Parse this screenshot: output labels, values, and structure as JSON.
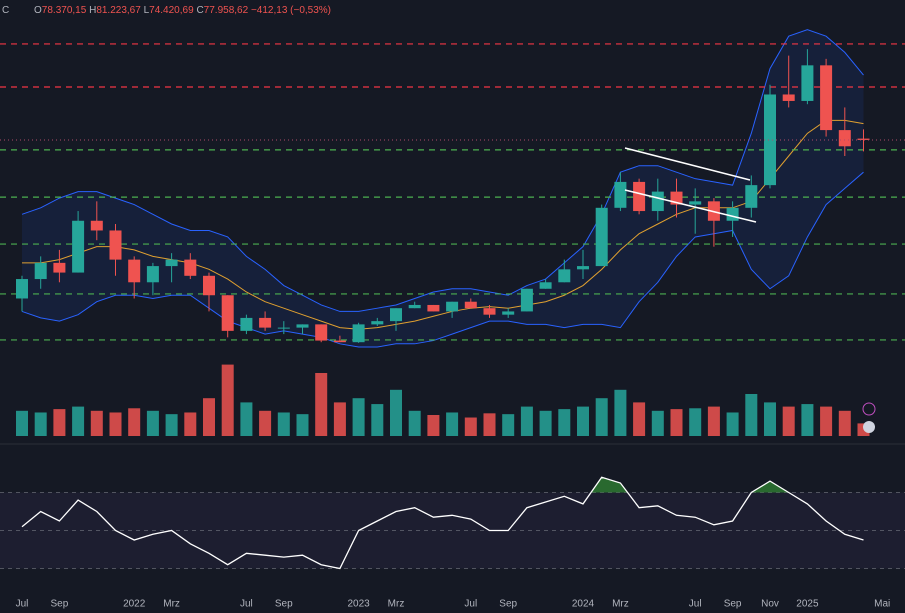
{
  "chart_data": {
    "type": "candlestick",
    "header": {
      "symbol": "C",
      "open_label": "O",
      "open": "78.370,15",
      "high_label": "H",
      "high": "81.223,67",
      "low_label": "L",
      "low": "74.420,69",
      "close_label": "C",
      "close": "77.958,62",
      "change": "−412,13 (−0,53%)"
    },
    "categories": [
      "Jul",
      null,
      "Sep",
      null,
      null,
      null,
      "2022",
      null,
      "Mrz",
      null,
      null,
      null,
      "Jul",
      null,
      "Sep",
      null,
      null,
      null,
      "2023",
      null,
      "Mrz",
      null,
      null,
      null,
      "Jul",
      null,
      "Sep",
      null,
      null,
      null,
      "2024",
      null,
      "Mrz",
      null,
      null,
      null,
      "Jul",
      null,
      "Sep",
      null,
      "Nov",
      null,
      "2025",
      null,
      null,
      null,
      "Mai"
    ],
    "open": [
      29000,
      35000,
      40000,
      37000,
      53000,
      50000,
      41000,
      34000,
      39000,
      41000,
      36000,
      30000,
      19000,
      23000,
      20000,
      20000,
      21000,
      16000,
      15500,
      21000,
      22000,
      26000,
      27000,
      25000,
      28000,
      26000,
      24000,
      25000,
      32000,
      34000,
      38000,
      39000,
      57000,
      65000,
      56000,
      62000,
      58000,
      59000,
      53000,
      57000,
      64000,
      92000,
      90000,
      101000,
      81000,
      78370.15,
      null
    ],
    "high": [
      36000,
      42000,
      44000,
      56000,
      59000,
      52000,
      42000,
      40000,
      43000,
      43000,
      37000,
      30000,
      24000,
      25000,
      22000,
      21000,
      21000,
      17500,
      21500,
      23000,
      26000,
      28000,
      27000,
      28000,
      29000,
      27000,
      26000,
      32000,
      35000,
      41000,
      44000,
      58000,
      68000,
      66000,
      66000,
      66000,
      63000,
      60000,
      59000,
      67000,
      95000,
      104000,
      106000,
      103000,
      88000,
      81223.67,
      null
    ],
    "low": [
      25000,
      32000,
      34000,
      37000,
      47000,
      36000,
      29000,
      30000,
      34000,
      35000,
      25000,
      17000,
      18000,
      19000,
      18000,
      18000,
      15500,
      15500,
      15300,
      20500,
      19000,
      26000,
      25000,
      23000,
      27000,
      23000,
      23000,
      25000,
      32000,
      34000,
      35000,
      39000,
      56000,
      55000,
      53000,
      54000,
      49000,
      45000,
      48000,
      54000,
      63000,
      88000,
      89000,
      79000,
      73000,
      74420.69,
      null
    ],
    "close": [
      35000,
      40000,
      37000,
      53000,
      50000,
      41000,
      34000,
      39000,
      41000,
      36000,
      30000,
      19000,
      23000,
      20000,
      20000,
      21000,
      16000,
      15500,
      21000,
      22000,
      26000,
      27000,
      25000,
      28000,
      26000,
      24000,
      25000,
      32000,
      34000,
      38000,
      39000,
      57000,
      65000,
      56000,
      62000,
      58000,
      59000,
      53000,
      57000,
      64000,
      92000,
      90000,
      101000,
      81000,
      76000,
      77958.62,
      null
    ],
    "up_color": "#26a69a",
    "down_color": "#ef5350",
    "ylim": [
      10000,
      115000
    ],
    "levels": [
      {
        "value": 107600,
        "color": "#f23645"
      },
      {
        "value": 94300,
        "color": "#f23645"
      },
      {
        "value": 74900,
        "color": "#4caf50"
      },
      {
        "value": 60300,
        "color": "#4caf50"
      },
      {
        "value": 45800,
        "color": "#4caf50"
      },
      {
        "value": 30400,
        "color": "#4caf50"
      },
      {
        "value": 16200,
        "color": "#4caf50"
      }
    ],
    "price_line_color": "#b04a6a",
    "bollinger": {
      "upper": [
        55000,
        57000,
        60000,
        62000,
        62000,
        60000,
        58000,
        55000,
        52000,
        50000,
        50000,
        48000,
        42000,
        38000,
        33000,
        30000,
        27000,
        25000,
        25000,
        26000,
        27000,
        29000,
        31000,
        32000,
        32000,
        31000,
        30000,
        33000,
        35000,
        40000,
        45000,
        55000,
        68000,
        70000,
        70000,
        68000,
        66000,
        65000,
        64000,
        80000,
        100000,
        110000,
        112000,
        110000,
        105000,
        98000,
        null
      ],
      "middle": [
        40000,
        40000,
        41000,
        43000,
        45000,
        45000,
        44000,
        42000,
        41000,
        40000,
        38000,
        35000,
        31000,
        28000,
        26000,
        24000,
        22000,
        20000,
        19500,
        20000,
        21000,
        22000,
        23500,
        25000,
        26000,
        26500,
        26000,
        27000,
        28000,
        30000,
        33000,
        38000,
        44000,
        49000,
        52000,
        55000,
        57000,
        57000,
        57000,
        59000,
        66000,
        73000,
        80000,
        84000,
        84000,
        83000,
        null
      ],
      "lower": [
        25000,
        23000,
        22000,
        24000,
        28000,
        30000,
        30000,
        29000,
        30000,
        30000,
        26000,
        22000,
        20000,
        18000,
        19000,
        18000,
        17000,
        15000,
        14000,
        14000,
        15000,
        15000,
        16000,
        18000,
        20000,
        22000,
        22000,
        21000,
        21000,
        20000,
        21000,
        21000,
        20000,
        28000,
        34000,
        42000,
        48000,
        49000,
        50000,
        38000,
        32000,
        36000,
        48000,
        58000,
        63000,
        68000,
        null
      ],
      "color": "#2962ff",
      "middle_color": "#e0a030"
    },
    "volume": {
      "values": [
        30,
        28,
        32,
        35,
        30,
        28,
        33,
        30,
        26,
        28,
        45,
        85,
        40,
        30,
        28,
        26,
        75,
        40,
        45,
        38,
        55,
        30,
        25,
        28,
        22,
        27,
        26,
        35,
        30,
        32,
        35,
        45,
        55,
        40,
        30,
        32,
        33,
        35,
        28,
        50,
        40,
        35,
        38,
        35,
        30,
        15,
        null
      ],
      "ylim": [
        0,
        100
      ]
    },
    "rsi": {
      "values": [
        52,
        60,
        55,
        66,
        60,
        50,
        45,
        48,
        50,
        43,
        38,
        32,
        38,
        37,
        36,
        37,
        32,
        30,
        50,
        55,
        60,
        62,
        57,
        58,
        56,
        50,
        50,
        62,
        65,
        68,
        64,
        78,
        75,
        62,
        63,
        58,
        57,
        53,
        55,
        70,
        76,
        70,
        64,
        55,
        48,
        45,
        null
      ],
      "ylim": [
        15,
        95
      ],
      "levels": [
        70,
        50,
        30
      ],
      "color": "#ffffff",
      "overbought_color": "#2e7d32"
    }
  }
}
